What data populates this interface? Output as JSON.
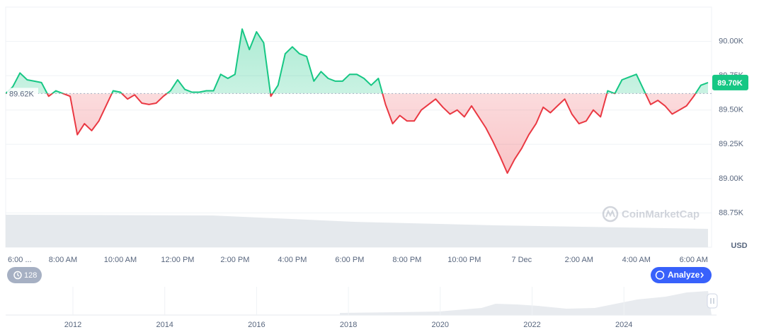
{
  "chart_data": {
    "type": "line",
    "x": [
      0,
      0.25,
      0.5,
      0.75,
      1,
      1.25,
      1.5,
      1.75,
      2,
      2.25,
      2.5,
      2.75,
      3,
      3.25,
      3.5,
      3.75,
      4,
      4.25,
      4.5,
      4.75,
      5,
      5.25,
      5.5,
      5.75,
      6,
      6.25,
      6.5,
      6.75,
      7,
      7.25,
      7.5,
      7.75,
      8,
      8.25,
      8.5,
      8.75,
      9,
      9.25,
      9.5,
      9.75,
      10,
      10.25,
      10.5,
      10.75,
      11,
      11.25,
      11.5,
      11.75,
      12,
      12.25,
      12.5,
      12.75,
      13,
      13.25,
      13.5,
      13.75,
      14,
      14.25,
      14.5,
      14.75,
      15,
      15.25,
      15.5,
      15.75,
      16,
      16.25,
      16.5,
      16.75,
      17,
      17.25,
      17.5,
      17.75,
      18,
      18.25,
      18.5,
      18.75,
      19,
      19.25,
      19.5,
      19.75,
      20,
      20.25,
      20.5,
      20.75,
      21,
      21.25,
      21.5,
      21.75,
      22,
      22.25,
      22.5,
      22.75,
      23,
      23.25,
      23.5,
      23.75,
      24,
      24.25,
      24.5
    ],
    "values": [
      89.62,
      89.67,
      89.77,
      89.72,
      89.71,
      89.7,
      89.6,
      89.64,
      89.62,
      89.6,
      89.32,
      89.4,
      89.35,
      89.42,
      89.53,
      89.64,
      89.63,
      89.58,
      89.61,
      89.55,
      89.54,
      89.55,
      89.6,
      89.64,
      89.72,
      89.65,
      89.63,
      89.63,
      89.64,
      89.64,
      89.76,
      89.73,
      89.76,
      90.09,
      89.94,
      90.07,
      89.99,
      89.6,
      89.68,
      89.91,
      89.96,
      89.91,
      89.89,
      89.71,
      89.78,
      89.73,
      89.71,
      89.71,
      89.76,
      89.76,
      89.73,
      89.68,
      89.73,
      89.54,
      89.4,
      89.46,
      89.42,
      89.42,
      89.5,
      89.54,
      89.58,
      89.52,
      89.47,
      89.5,
      89.45,
      89.53,
      89.45,
      89.37,
      89.27,
      89.16,
      89.04,
      89.14,
      89.22,
      89.32,
      89.4,
      89.52,
      89.48,
      89.53,
      89.58,
      89.47,
      89.4,
      89.42,
      89.5,
      89.45,
      89.64,
      89.62,
      89.72,
      89.74,
      89.76,
      89.65,
      89.54,
      89.57,
      89.53,
      89.47,
      89.5,
      89.53,
      89.6,
      89.68,
      89.7
    ],
    "up_color": "#16c784",
    "down_color": "#ea3943",
    "baseline": {
      "value": 89.62,
      "label": "89.62K"
    },
    "current": {
      "value": 89.7,
      "label": "89.70K"
    },
    "ylim": [
      88.5,
      90.25
    ],
    "yticks": [
      {
        "value": 88.75,
        "label": "88.75K"
      },
      {
        "value": 89.0,
        "label": "89.00K"
      },
      {
        "value": 89.25,
        "label": "89.25K"
      },
      {
        "value": 89.5,
        "label": "89.50K"
      },
      {
        "value": 89.75,
        "label": "89.75K"
      },
      {
        "value": 90.0,
        "label": "90.00K"
      }
    ],
    "xlim": [
      0,
      24.5
    ],
    "xticks": [
      {
        "value": 0,
        "label": "6:00 ..."
      },
      {
        "value": 2,
        "label": "8:00 AM"
      },
      {
        "value": 4,
        "label": "10:00 AM"
      },
      {
        "value": 6,
        "label": "12:00 PM"
      },
      {
        "value": 8,
        "label": "2:00 PM"
      },
      {
        "value": 10,
        "label": "4:00 PM"
      },
      {
        "value": 12,
        "label": "6:00 PM"
      },
      {
        "value": 14,
        "label": "8:00 PM"
      },
      {
        "value": 16,
        "label": "10:00 PM"
      },
      {
        "value": 18,
        "label": "7 Dec"
      },
      {
        "value": 20,
        "label": "2:00 AM"
      },
      {
        "value": 22,
        "label": "4:00 AM"
      },
      {
        "value": 24,
        "label": "6:00 AM"
      }
    ],
    "grid": true,
    "currency": "USD"
  },
  "watermark": "CoinMarketCap",
  "indicator_count": "128",
  "analyze_button": "Analyze",
  "navigator_years": [
    "2012",
    "2014",
    "2016",
    "2018",
    "2020",
    "2022",
    "2024"
  ]
}
